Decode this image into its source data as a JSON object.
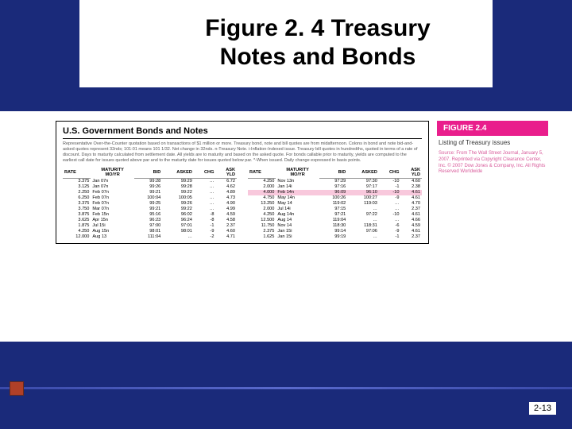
{
  "title": "Figure 2. 4 Treasury Notes and Bonds",
  "panel": {
    "header": "U.S. Government Bonds and Notes",
    "description": "Representative Over-the-Counter quotation based on transactions of $1 million or more. Treasury bond, note and bill quotes are from midafternoon. Colons in bond and note bid-and-asked quotes represent 32nds; 101:01 means 101 1/32. Net change in 32nds. n-Treasury Note. i-Inflation-Indexed issue. Treasury bill quotes in hundredths, quoted in terms of a rate of discount. Days to maturity calculated from settlement date. All yields are to maturity and based on the asked quote. For bonds callable prior to maturity, yields are computed to the earliest call date for issues quoted above par and to the maturity date for issues quoted below par. *-When issued. Daily change expressed in basis points."
  },
  "figure_label": {
    "badge": "FIGURE 2.4",
    "caption": "Listing of Treasury issues",
    "source": "Source: From The Wall Street Journal, January 5, 2007. Reprinted via Copyright Clearance Center, Inc. © 2007 Dow Jones & Company, Inc. All Rights Reserved Worldwide"
  },
  "columns": {
    "rate": "RATE",
    "maturity_group": "MATURITY",
    "maturity": "MO/YR",
    "bid": "BID",
    "asked": "ASKED",
    "chg": "CHG",
    "ask_group": "ASK",
    "yld": "YLD"
  },
  "left_rows": [
    {
      "rate": "3.375",
      "mat": "Jan 07n",
      "bid": "99:28",
      "asked": "99:29",
      "chg": "…",
      "yld": "6.72"
    },
    {
      "rate": "3.125",
      "mat": "Jan 07n",
      "bid": "99:26",
      "asked": "99:28",
      "chg": "…",
      "yld": "4.62"
    },
    {
      "rate": "2.250",
      "mat": "Feb 07n",
      "bid": "99:21",
      "asked": "99:22",
      "chg": "…",
      "yld": "4.89"
    },
    {
      "rate": "6.250",
      "mat": "Feb 07n",
      "bid": "100:04",
      "asked": "100:05",
      "chg": "…",
      "yld": "4.73"
    },
    {
      "rate": "3.375",
      "mat": "Feb 07n",
      "bid": "99:25",
      "asked": "99:26",
      "chg": "…",
      "yld": "4.90"
    },
    {
      "rate": "3.750",
      "mat": "Mar 07n",
      "bid": "99:21",
      "asked": "99:22",
      "chg": "…",
      "yld": "4.99"
    },
    {
      "rate": "3.875",
      "mat": "Feb 15n",
      "bid": "95:16",
      "asked": "96:02",
      "chg": "-8",
      "yld": "4.59"
    },
    {
      "rate": "3.625",
      "mat": "Apr 15n",
      "bid": "96:23",
      "asked": "96:24",
      "chg": "-8",
      "yld": "4.58"
    },
    {
      "rate": "1.875",
      "mat": "Jul 15i",
      "bid": "97:00",
      "asked": "97:01",
      "chg": "-1",
      "yld": "2.37"
    },
    {
      "rate": "4.250",
      "mat": "Aug 15n",
      "bid": "98:01",
      "asked": "98:01",
      "chg": "-9",
      "yld": "4.60"
    },
    {
      "rate": "12.000",
      "mat": "Aug 13",
      "bid": "111:04",
      "asked": "…",
      "chg": "-2",
      "yld": "4.71"
    }
  ],
  "right_rows": [
    {
      "rate": "4.250",
      "mat": "Nov 13n",
      "bid": "97:29",
      "asked": "97:30",
      "chg": "-10",
      "yld": "4.60"
    },
    {
      "rate": "2.000",
      "mat": "Jan 14i",
      "bid": "97:16",
      "asked": "97:17",
      "chg": "-1",
      "yld": "2.38"
    },
    {
      "rate": "4.000",
      "mat": "Feb 14n",
      "bid": "96:09",
      "asked": "96:10",
      "chg": "-10",
      "yld": "4.61",
      "hl": true
    },
    {
      "rate": "4.750",
      "mat": "May 14n",
      "bid": "100:26",
      "asked": "100:27",
      "chg": "-9",
      "yld": "4.61"
    },
    {
      "rate": "13.250",
      "mat": "May 14",
      "bid": "119:02",
      "asked": "119:03",
      "chg": "…",
      "yld": "4.70"
    },
    {
      "rate": "2.000",
      "mat": "Jul 14i",
      "bid": "97:15",
      "asked": "…",
      "chg": "…",
      "yld": "2.37"
    },
    {
      "rate": "4.250",
      "mat": "Aug 14n",
      "bid": "97:21",
      "asked": "97:22",
      "chg": "-10",
      "yld": "4.61"
    },
    {
      "rate": "12.500",
      "mat": "Aug 14",
      "bid": "119:04",
      "asked": "…",
      "chg": "…",
      "yld": "4.66"
    },
    {
      "rate": "11.750",
      "mat": "Nov 14",
      "bid": "118:30",
      "asked": "118:31",
      "chg": "-6",
      "yld": "4.59"
    },
    {
      "rate": "2.375",
      "mat": "Jan 15i",
      "bid": "99:14",
      "asked": "97:06",
      "chg": "-9",
      "yld": "4.61"
    },
    {
      "rate": "1.625",
      "mat": "Jan 15i",
      "bid": "99:19",
      "asked": "…",
      "chg": "-1",
      "yld": "2.37"
    }
  ],
  "page_number": "2-13",
  "colors": {
    "slide_bg": "#1a2a7a",
    "title_bg": "#ffffff",
    "content_bg": "#ffffff",
    "badge_bg": "#e91e8c",
    "highlight_row": "#f8c8dc",
    "source_text": "#d85a9a",
    "deco_square": "#b04028"
  }
}
